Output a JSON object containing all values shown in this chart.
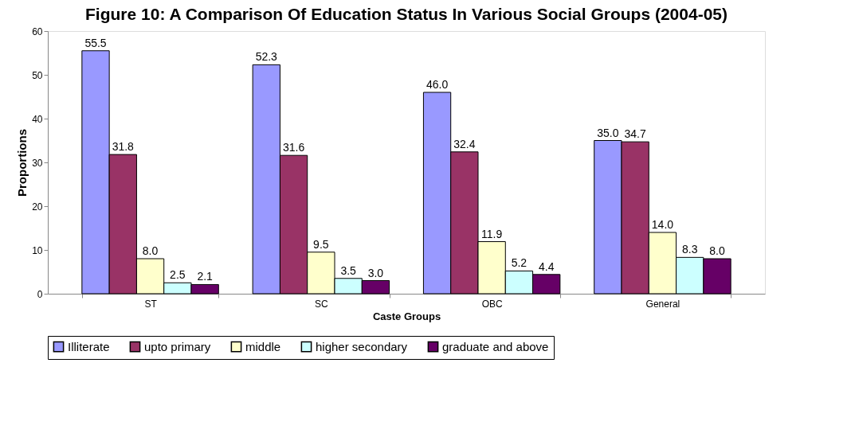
{
  "chart_data": {
    "type": "bar",
    "title": "Figure 10: A Comparison Of Education Status In Various Social Groups (2004-05)",
    "xlabel": "Caste Groups",
    "ylabel": "Proportions",
    "categories": [
      "ST",
      "SC",
      "OBC",
      "General"
    ],
    "series": [
      {
        "name": "Illiterate",
        "color": "#9999ff",
        "values": [
          55.5,
          52.3,
          46.0,
          35.0
        ],
        "value_labels": [
          "55.5",
          "52.3",
          "46.0",
          "35.0"
        ]
      },
      {
        "name": "upto primary",
        "color": "#993366",
        "values": [
          31.8,
          31.6,
          32.4,
          34.7
        ],
        "value_labels": [
          "31.8",
          "31.6",
          "32.4",
          "34.7"
        ]
      },
      {
        "name": "middle",
        "color": "#ffffcc",
        "values": [
          8.0,
          9.5,
          11.9,
          14.0
        ],
        "value_labels": [
          "8.0",
          "9.5",
          "11.9",
          "14.0"
        ]
      },
      {
        "name": "higher secondary",
        "color": "#ccffff",
        "values": [
          2.5,
          3.5,
          5.2,
          8.3
        ],
        "value_labels": [
          "2.5",
          "3.5",
          "5.2",
          "8.3"
        ]
      },
      {
        "name": "graduate and above",
        "color": "#660066",
        "values": [
          2.1,
          3.0,
          4.4,
          8.0
        ],
        "value_labels": [
          "2.1",
          "3.0",
          "4.4",
          "8.0"
        ]
      }
    ],
    "ylim": [
      0,
      60
    ],
    "yticks": [
      0,
      10,
      20,
      30,
      40,
      50,
      60
    ],
    "grid": false,
    "legend": "bottom"
  }
}
